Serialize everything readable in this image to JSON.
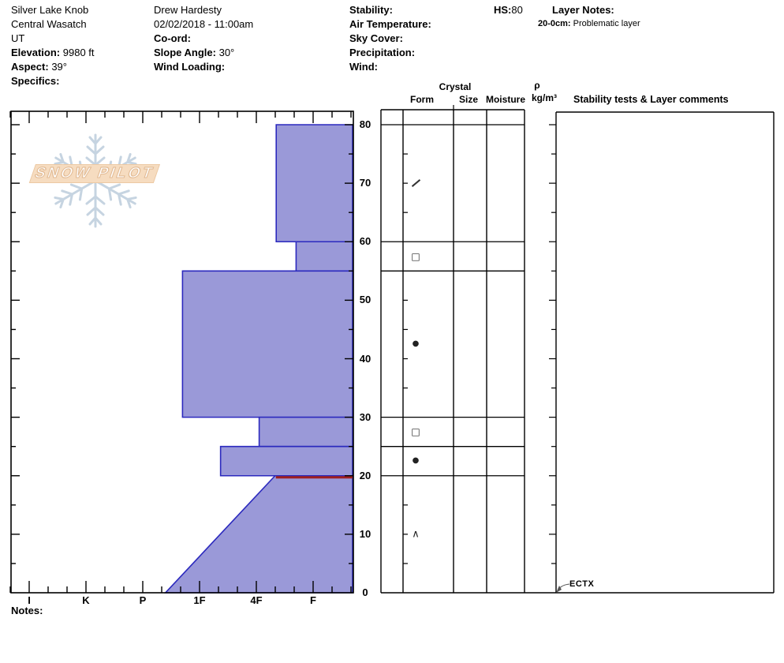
{
  "header": {
    "location": {
      "name": "Silver Lake Knob",
      "range": "Central Wasatch",
      "state": "UT",
      "elevation_label": "Elevation:",
      "elevation_value": "9980 ft",
      "aspect_label": "Aspect:",
      "aspect_value": "39°",
      "specifics_label": "Specifics:"
    },
    "observer": {
      "name": "Drew Hardesty",
      "datetime": "02/02/2018 - 11:00am",
      "coord_label": "Co-ord:",
      "slope_angle_label": "Slope Angle:",
      "slope_angle_value": "30°",
      "wind_loading_label": "Wind Loading:"
    },
    "conditions": {
      "stability_label": "Stability:",
      "air_temp_label": "Air Temperature:",
      "sky_cover_label": "Sky Cover:",
      "precipitation_label": "Precipitation:",
      "wind_label": "Wind:"
    },
    "hs_label": "HS:",
    "hs_value": "80",
    "layer_notes": {
      "title": "Layer Notes:",
      "entries": [
        {
          "range_label": "20-0cm:",
          "text": "Problematic layer"
        }
      ]
    }
  },
  "logo": {
    "text": "SNOW PILOT",
    "icon": "snowflake-icon"
  },
  "panel": {
    "headers": {
      "crystal": "Crystal",
      "form": "Form",
      "size": "Size",
      "moisture": "Moisture",
      "rho": "ρ",
      "rho_units": "kg/m³",
      "stability": "Stability tests & Layer comments"
    },
    "stability_annotation": "ECTX"
  },
  "axes": {
    "hardness_labels": [
      "I",
      "K",
      "P",
      "1F",
      "4F",
      "F"
    ],
    "depth_labels": [
      0,
      10,
      20,
      30,
      40,
      50,
      60,
      70,
      80
    ],
    "depth_unit": "cm",
    "depth_max": 80
  },
  "notes_label": "Notes:",
  "chart_data": {
    "type": "bar",
    "subtype": "snow-profile-hardness",
    "orientation": "horizontal-depth-profile",
    "depth_unit": "cm",
    "total_depth_cm": 80,
    "hardness_scale": [
      "I",
      "K",
      "P",
      "1F",
      "4F",
      "F"
    ],
    "hardness_scale_note": "I=0 .. F=5 axis units, softer toward right edge",
    "layers": [
      {
        "top_cm": 80,
        "bottom_cm": 60,
        "hardness": "4F-F",
        "u_top": 4.35,
        "u_bottom": 4.35,
        "grain_form": "decomposing-fragments",
        "grain_symbol": "slash"
      },
      {
        "top_cm": 60,
        "bottom_cm": 55,
        "hardness": "F",
        "u_top": 4.7,
        "u_bottom": 4.7,
        "grain_form": "facets",
        "grain_symbol": "square"
      },
      {
        "top_cm": 55,
        "bottom_cm": 30,
        "hardness": "P-1F",
        "u_top": 2.7,
        "u_bottom": 2.7,
        "grain_form": "rounds",
        "grain_symbol": "dot"
      },
      {
        "top_cm": 30,
        "bottom_cm": 25,
        "hardness": "4F",
        "u_top": 4.05,
        "u_bottom": 4.05,
        "grain_form": "facets",
        "grain_symbol": "square"
      },
      {
        "top_cm": 25,
        "bottom_cm": 20,
        "hardness": "1F-4F",
        "u_top": 3.37,
        "u_bottom": 3.37,
        "grain_form": "rounds",
        "grain_symbol": "dot"
      },
      {
        "top_cm": 20,
        "bottom_cm": 0,
        "hardness": "4F grading to P",
        "u_top": 4.33,
        "u_bottom": 2.4,
        "graded": true,
        "grain_form": "depth-hoar",
        "grain_symbol": "caret"
      }
    ],
    "problematic_layer": {
      "depth_cm": 20,
      "marker": "red-line"
    },
    "stability_test": {
      "result": "ECTX",
      "depth_cm": 0
    }
  },
  "colors": {
    "bar_fill": "#9a99d8",
    "bar_stroke": "#2b29be",
    "problematic_line": "#9e2020",
    "grid": "#000000",
    "flake": "#c6d4e1",
    "banner": "#f6dcc0"
  }
}
